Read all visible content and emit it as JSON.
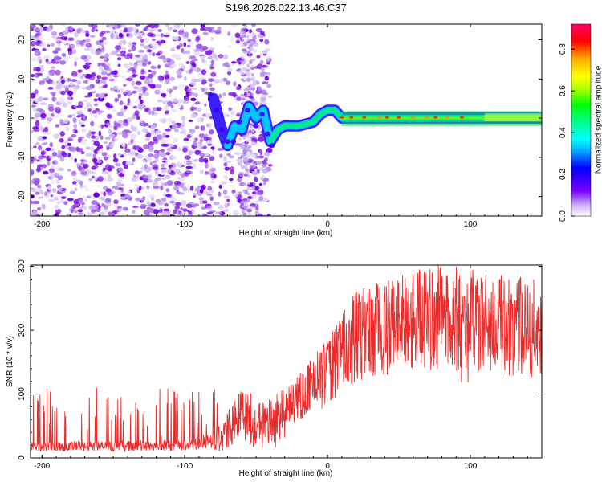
{
  "title": "S196.2026.022.13.46.C37",
  "chart_data": [
    {
      "type": "heatmap",
      "xlabel": "Height of straight line (km)",
      "ylabel": "Frequency (Hz)",
      "xlim": [
        -208,
        150
      ],
      "ylim": [
        -25,
        24
      ],
      "xticks": [
        -200,
        -100,
        0,
        100
      ],
      "yticks": [
        -20,
        -10,
        0,
        10,
        20
      ],
      "ridge": [
        [
          -80,
          5
        ],
        [
          -75,
          -2
        ],
        [
          -70,
          -7
        ],
        [
          -65,
          -2
        ],
        [
          -60,
          -3
        ],
        [
          -55,
          3
        ],
        [
          -50,
          0
        ],
        [
          -45,
          2
        ],
        [
          -40,
          -6
        ],
        [
          -35,
          -3
        ],
        [
          -30,
          -2
        ],
        [
          -20,
          -2
        ],
        [
          -10,
          -1
        ],
        [
          -5,
          1
        ],
        [
          0,
          2
        ],
        [
          5,
          2
        ],
        [
          10,
          0
        ],
        [
          30,
          0
        ],
        [
          60,
          0
        ],
        [
          90,
          0
        ],
        [
          95,
          0
        ],
        [
          100,
          0
        ],
        [
          120,
          0
        ],
        [
          150,
          0
        ]
      ],
      "colorbar": {
        "label": "Normalized spectral amplitude",
        "ticks": [
          0.0,
          0.2,
          0.4,
          0.6,
          0.8
        ],
        "tick_labels": [
          "0.0",
          "0.2",
          "0.4",
          "0.6",
          "0.8"
        ],
        "range": [
          0,
          0.92
        ]
      }
    },
    {
      "type": "line",
      "xlabel": "Height of straight line (km)",
      "ylabel": "SNR (10 * v/v)",
      "xlim": [
        -208,
        150
      ],
      "ylim": [
        0,
        302
      ],
      "xticks": [
        -200,
        -100,
        0,
        100
      ],
      "yticks": [
        0,
        100,
        200,
        300
      ],
      "color": "#ee2b2b",
      "envelope": [
        [
          -208,
          18
        ],
        [
          -150,
          18
        ],
        [
          -100,
          20
        ],
        [
          -75,
          30
        ],
        [
          -65,
          55
        ],
        [
          -58,
          70
        ],
        [
          -50,
          40
        ],
        [
          -42,
          55
        ],
        [
          -35,
          50
        ],
        [
          -30,
          75
        ],
        [
          -20,
          95
        ],
        [
          -10,
          115
        ],
        [
          0,
          135
        ],
        [
          10,
          165
        ],
        [
          20,
          190
        ],
        [
          40,
          205
        ],
        [
          60,
          215
        ],
        [
          80,
          222
        ],
        [
          100,
          215
        ],
        [
          120,
          208
        ],
        [
          150,
          203
        ]
      ],
      "peaks": [
        [
          -60,
          110
        ],
        [
          -40,
          95
        ],
        [
          -25,
          120
        ],
        [
          -5,
          175
        ],
        [
          20,
          260
        ],
        [
          35,
          275
        ],
        [
          50,
          290
        ],
        [
          65,
          300
        ],
        [
          80,
          280
        ],
        [
          95,
          300
        ],
        [
          110,
          290
        ],
        [
          130,
          280
        ],
        [
          150,
          270
        ]
      ],
      "dips": [
        [
          0,
          60
        ],
        [
          20,
          120
        ],
        [
          60,
          160
        ],
        [
          95,
          95
        ],
        [
          150,
          170
        ]
      ]
    }
  ]
}
